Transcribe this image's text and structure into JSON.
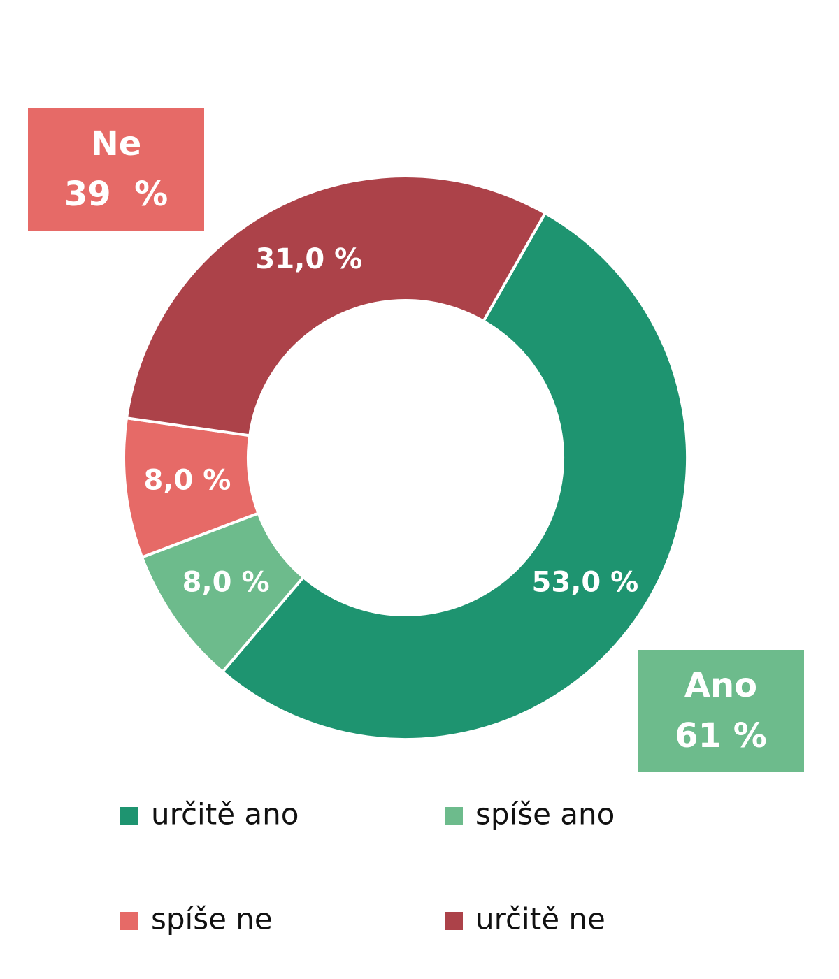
{
  "chart_data": {
    "type": "donut",
    "categories": [
      "určitě ano",
      "spíše ano",
      "spíše ne",
      "určitě ne"
    ],
    "values": [
      53,
      8,
      8,
      31
    ],
    "value_labels": [
      "53,0 %",
      "8,0 %",
      "8,0 %",
      "31,0 %"
    ],
    "colors": [
      "#1e9470",
      "#6dbb8c",
      "#e66a67",
      "#ac4249"
    ],
    "annotations": [
      {
        "lines": [
          "Ne",
          "39  %"
        ],
        "color": "#e66a67"
      },
      {
        "lines": [
          "Ano",
          "61 %"
        ],
        "color": "#6dbb8c"
      }
    ],
    "legend": "bottom"
  }
}
